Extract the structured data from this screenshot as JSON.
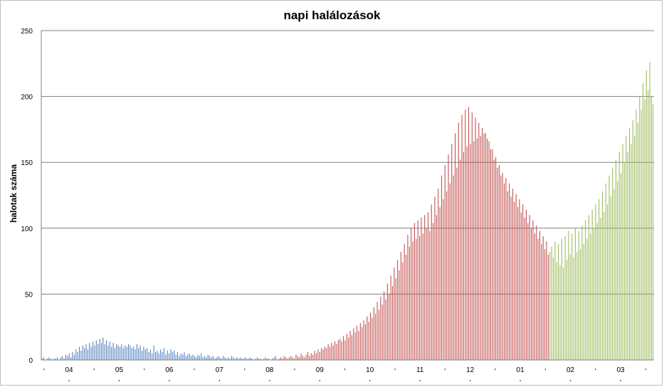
{
  "chart_data": {
    "type": "bar",
    "title": "napi halálozások",
    "xlabel": "",
    "ylabel": "halotak száma",
    "ylim": [
      0,
      250
    ],
    "yticks": [
      0,
      50,
      100,
      150,
      200,
      250
    ],
    "grid": true,
    "legend": "none",
    "x_tick_labels": [
      "04",
      "05",
      "06",
      "07",
      "08",
      "09",
      "10",
      "11",
      "12",
      "01",
      "02",
      "03"
    ],
    "x_start_date": "2020-03-15",
    "series": [
      {
        "color": "#4f81bd",
        "start_day": 0,
        "values": [
          1,
          2,
          0,
          1,
          2,
          1,
          0,
          1,
          1,
          2,
          0,
          2,
          3,
          1,
          4,
          3,
          5,
          2,
          6,
          4,
          8,
          6,
          10,
          7,
          11,
          9,
          12,
          8,
          13,
          10,
          14,
          11,
          15,
          12,
          16,
          13,
          17,
          12,
          15,
          11,
          14,
          10,
          13,
          9,
          12,
          11,
          10,
          12,
          9,
          11,
          10,
          12,
          11,
          9,
          10,
          8,
          12,
          9,
          11,
          7,
          10,
          8,
          9,
          6,
          8,
          5,
          11,
          6,
          7,
          5,
          8,
          6,
          9,
          4,
          7,
          5,
          8,
          6,
          7,
          4,
          6,
          3,
          5,
          4,
          6,
          3,
          4,
          5,
          3,
          4,
          3,
          2,
          4,
          3,
          5,
          2,
          3,
          2,
          4,
          3,
          2,
          3,
          1,
          2,
          3,
          2,
          1,
          3,
          2,
          1,
          2,
          1,
          3,
          2,
          1,
          2,
          1,
          2,
          1,
          1,
          2,
          1,
          1,
          2,
          1,
          0,
          1,
          2,
          1,
          1,
          0,
          1,
          2,
          1,
          1,
          0,
          1,
          2,
          3,
          0
        ]
      },
      {
        "color": "#c0504d",
        "start_day": 140,
        "values": [
          1,
          2,
          1,
          3,
          2,
          1,
          2,
          3,
          2,
          1,
          4,
          3,
          2,
          5,
          3,
          2,
          4,
          6,
          3,
          5,
          4,
          7,
          5,
          8,
          6,
          9,
          8,
          10,
          9,
          12,
          10,
          13,
          11,
          14,
          12,
          15,
          16,
          14,
          18,
          15,
          20,
          17,
          22,
          19,
          24,
          21,
          26,
          22,
          28,
          25,
          30,
          27,
          33,
          29,
          36,
          32,
          40,
          35,
          44,
          38,
          48,
          42,
          52,
          46,
          58,
          50,
          64,
          56,
          70,
          62,
          76,
          68,
          82,
          74,
          88,
          80,
          95,
          86,
          100,
          90,
          104,
          92,
          106,
          94,
          108,
          96,
          110,
          100,
          112,
          98,
          118,
          104,
          124,
          110,
          130,
          116,
          140,
          122,
          148,
          128,
          156,
          134,
          164,
          140,
          172,
          146,
          180,
          152,
          186,
          158,
          190,
          162,
          192,
          164,
          188,
          166,
          184,
          168,
          180,
          170,
          176,
          172,
          172,
          168,
          166,
          160,
          160,
          152,
          154,
          146,
          148,
          140,
          142,
          134,
          138,
          128,
          134,
          124,
          130,
          120,
          126,
          116,
          122,
          112,
          118,
          108,
          114,
          104,
          110,
          100,
          106,
          96,
          102,
          92,
          98,
          88,
          94,
          84,
          90,
          80
        ]
      },
      {
        "color": "#9bbb59",
        "start_day": 300,
        "values": [
          82,
          86,
          78,
          90,
          74,
          88,
          72,
          92,
          70,
          94,
          76,
          98,
          80,
          96,
          78,
          100,
          82,
          98,
          84,
          102,
          88,
          106,
          92,
          110,
          96,
          114,
          100,
          118,
          104,
          122,
          108,
          128,
          112,
          134,
          118,
          140,
          124,
          146,
          130,
          152,
          136,
          158,
          142,
          164,
          150,
          170,
          158,
          176,
          164,
          182,
          170,
          190,
          180,
          200,
          190,
          210,
          198,
          220,
          205,
          226,
          200,
          194
        ]
      }
    ]
  }
}
